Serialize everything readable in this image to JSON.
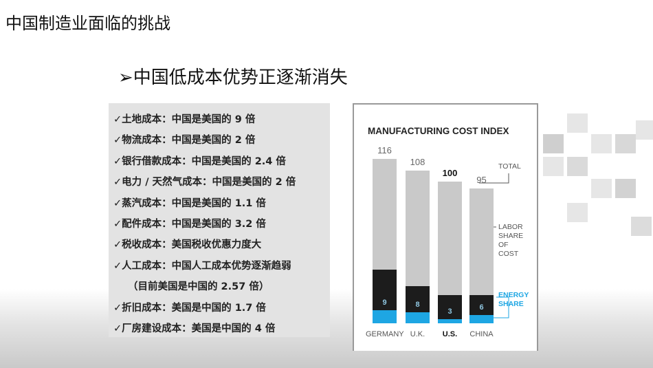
{
  "header": {
    "title": "中国制造业面临的挑战",
    "subtitle": "➢中国低成本优势正逐渐消失"
  },
  "list": {
    "items": [
      "✓土地成本：中国是美国的 9 倍",
      "✓物流成本：中国是美国的 2 倍",
      "✓银行借款成本：中国是美国的 2.4 倍",
      "✓电力 / 天然气成本：中国是美国的 2 倍",
      "✓蒸汽成本：中国是美国的 1.1 倍",
      "✓配件成本：中国是美国的 3.2 倍",
      "✓税收成本：美国税收优惠力度大",
      "✓人工成本：中国人工成本优势逐渐趋弱",
      "（目前美国是中国的 2.57 倍）",
      "✓折旧成本：美国是中国的 1.7 倍",
      "✓厂房建设成本：美国是中国的 4 倍"
    ]
  },
  "chart_data": {
    "type": "bar",
    "title": "MANUFACTURING COST INDEX",
    "categories": [
      "GERMANY",
      "U.K.",
      "U.S.",
      "CHINA"
    ],
    "bold_category": "U.S.",
    "series": [
      {
        "name": "TOTAL",
        "color": "#c9c9c9",
        "values": [
          116,
          108,
          100,
          95
        ]
      },
      {
        "name": "LABOR SHARE OF COST",
        "color": "#1c1c1c",
        "values": [
          29,
          18,
          17,
          14
        ]
      },
      {
        "name": "ENERGY SHARE",
        "color": "#1ea6e3",
        "values": [
          9,
          8,
          3,
          6
        ]
      }
    ]
  }
}
